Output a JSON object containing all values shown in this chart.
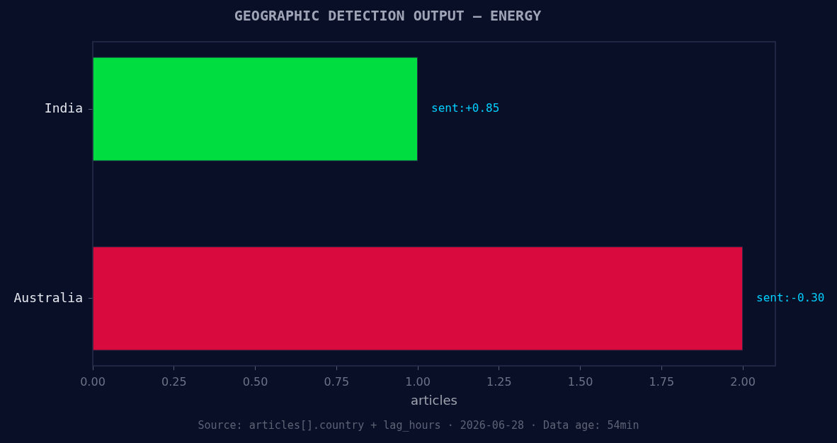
{
  "chart_data": {
    "type": "bar",
    "orientation": "horizontal",
    "title": "GEOGRAPHIC DETECTION OUTPUT — ENERGY",
    "xlabel": "articles",
    "categories": [
      "India",
      "Australia"
    ],
    "values": [
      1,
      2
    ],
    "colors": [
      "#00dd40",
      "#d90a3d"
    ],
    "xlim": [
      0,
      2.1
    ],
    "xticks": [
      {
        "value": 0,
        "label": "0.00"
      },
      {
        "value": 0.25,
        "label": "0.25"
      },
      {
        "value": 0.5,
        "label": "0.50"
      },
      {
        "value": 0.75,
        "label": "0.75"
      },
      {
        "value": 1,
        "label": "1.00"
      },
      {
        "value": 1.25,
        "label": "1.25"
      },
      {
        "value": 1.5,
        "label": "1.50"
      },
      {
        "value": 1.75,
        "label": "1.75"
      },
      {
        "value": 2,
        "label": "2.00"
      }
    ],
    "annotations": [
      {
        "text": "sent:+0.85",
        "x": 1,
        "y": "India"
      },
      {
        "text": "sent:-0.30",
        "x": 2,
        "y": "Australia"
      },
      "Source: articles[].country + lag_hours · 2026-06-28 · Data age: 54min"
    ]
  }
}
